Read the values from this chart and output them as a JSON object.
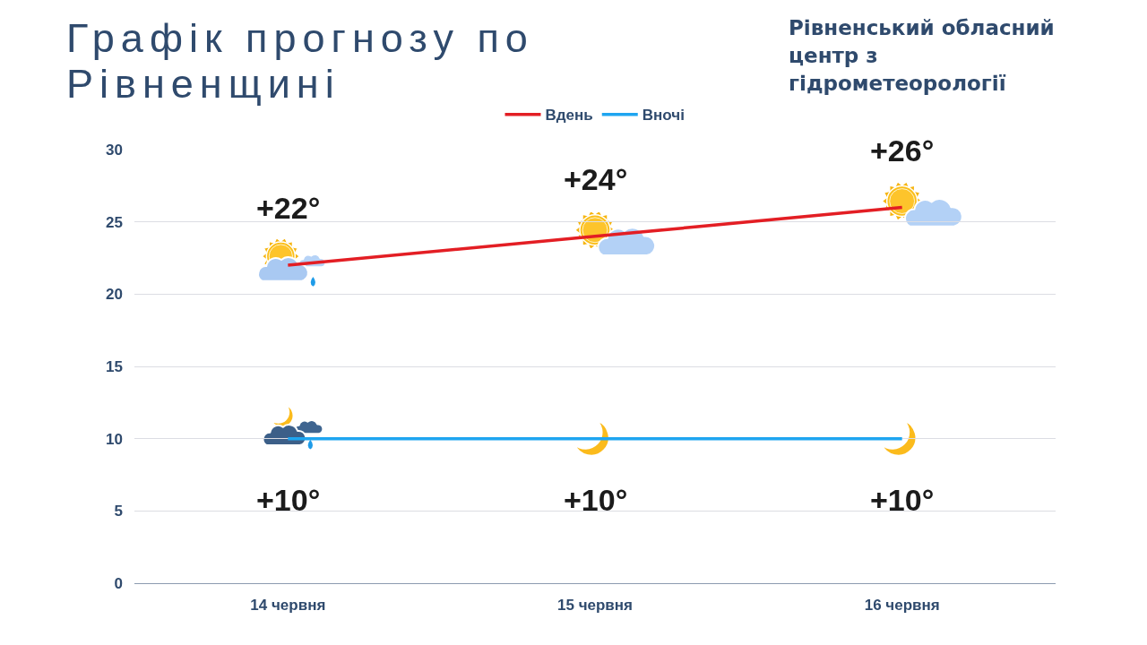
{
  "chart_data": {
    "type": "line",
    "title": "Графік прогнозу по Рівненщині",
    "annotations": [
      "Рівненський обласний центр з гідрометеорології"
    ],
    "categories": [
      "14 червня",
      "15 червня",
      "16 червня"
    ],
    "series": [
      {
        "name": "Вдень",
        "color": "#e31e24",
        "values": [
          22,
          24,
          26
        ],
        "value_labels": [
          "+22°",
          "+24°",
          "+26°"
        ]
      },
      {
        "name": "Вночі",
        "color": "#1ea5f0",
        "values": [
          10,
          10,
          10
        ],
        "value_labels": [
          "+10°",
          "+10°",
          "+10°"
        ]
      }
    ],
    "ylim": [
      0,
      30
    ],
    "yticks": [
      0,
      5,
      10,
      15,
      20,
      25,
      30
    ],
    "grid": "y",
    "legend": "top"
  }
}
